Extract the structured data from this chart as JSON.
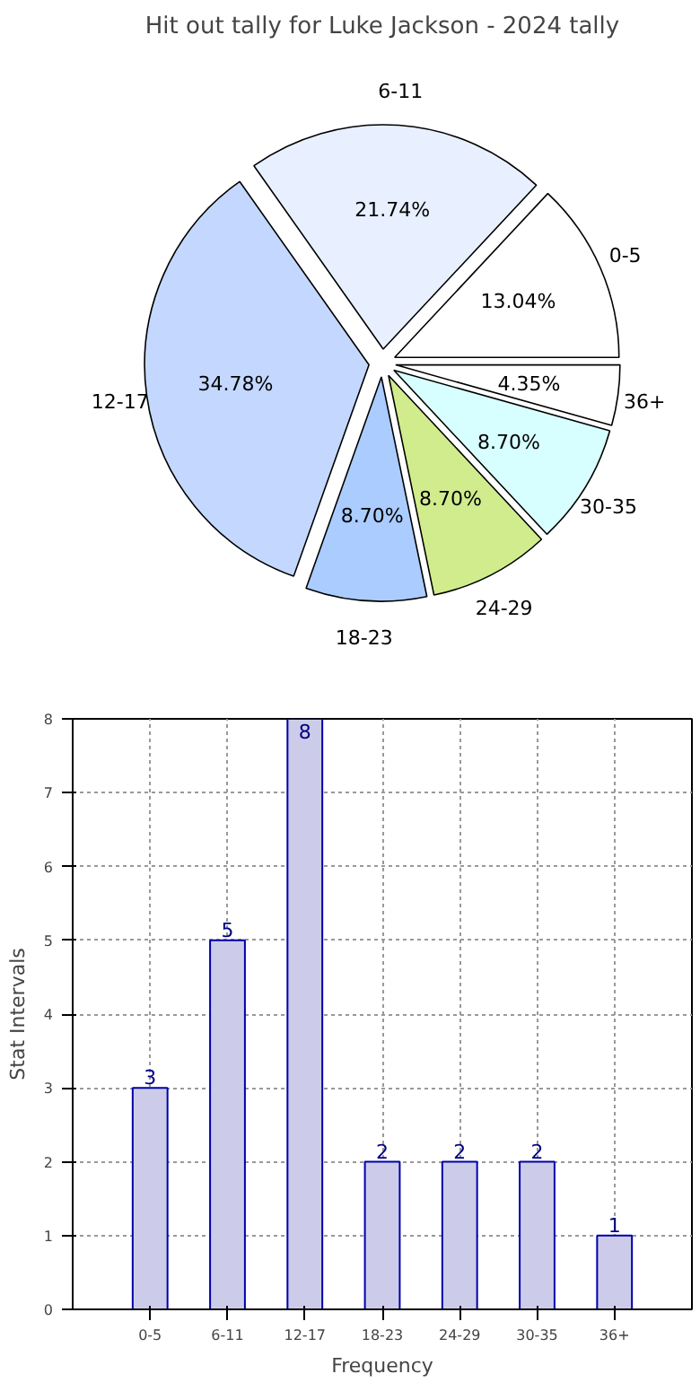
{
  "chart_data": [
    {
      "type": "pie",
      "title": "Hit out tally for Luke Jackson - 2024 tally",
      "categories": [
        "0-5",
        "6-11",
        "12-17",
        "18-23",
        "24-29",
        "30-35",
        "36+"
      ],
      "values": [
        13.04,
        21.74,
        34.78,
        8.7,
        8.7,
        8.7,
        4.35
      ],
      "colors": [
        "#ffffff",
        "#e8f0ff",
        "#c4d8ff",
        "#aaccff",
        "#d0ec8c",
        "#d8ffff",
        "#ffffff"
      ],
      "value_labels": [
        "13.04%",
        "21.74%",
        "34.78%",
        "8.70%",
        "8.70%",
        "8.70%",
        "4.35%"
      ]
    },
    {
      "type": "bar",
      "categories": [
        "0-5",
        "6-11",
        "12-17",
        "18-23",
        "24-29",
        "30-35",
        "36+"
      ],
      "values": [
        3,
        5,
        8,
        2,
        2,
        2,
        1
      ],
      "color": "#ccccea",
      "xlabel": "Frequency",
      "ylabel": "Stat Intervals",
      "ylim": [
        0,
        8
      ],
      "yticks": [
        0,
        1,
        2,
        3,
        4,
        5,
        6,
        7,
        8
      ],
      "grid": true,
      "data_labels": true
    }
  ]
}
